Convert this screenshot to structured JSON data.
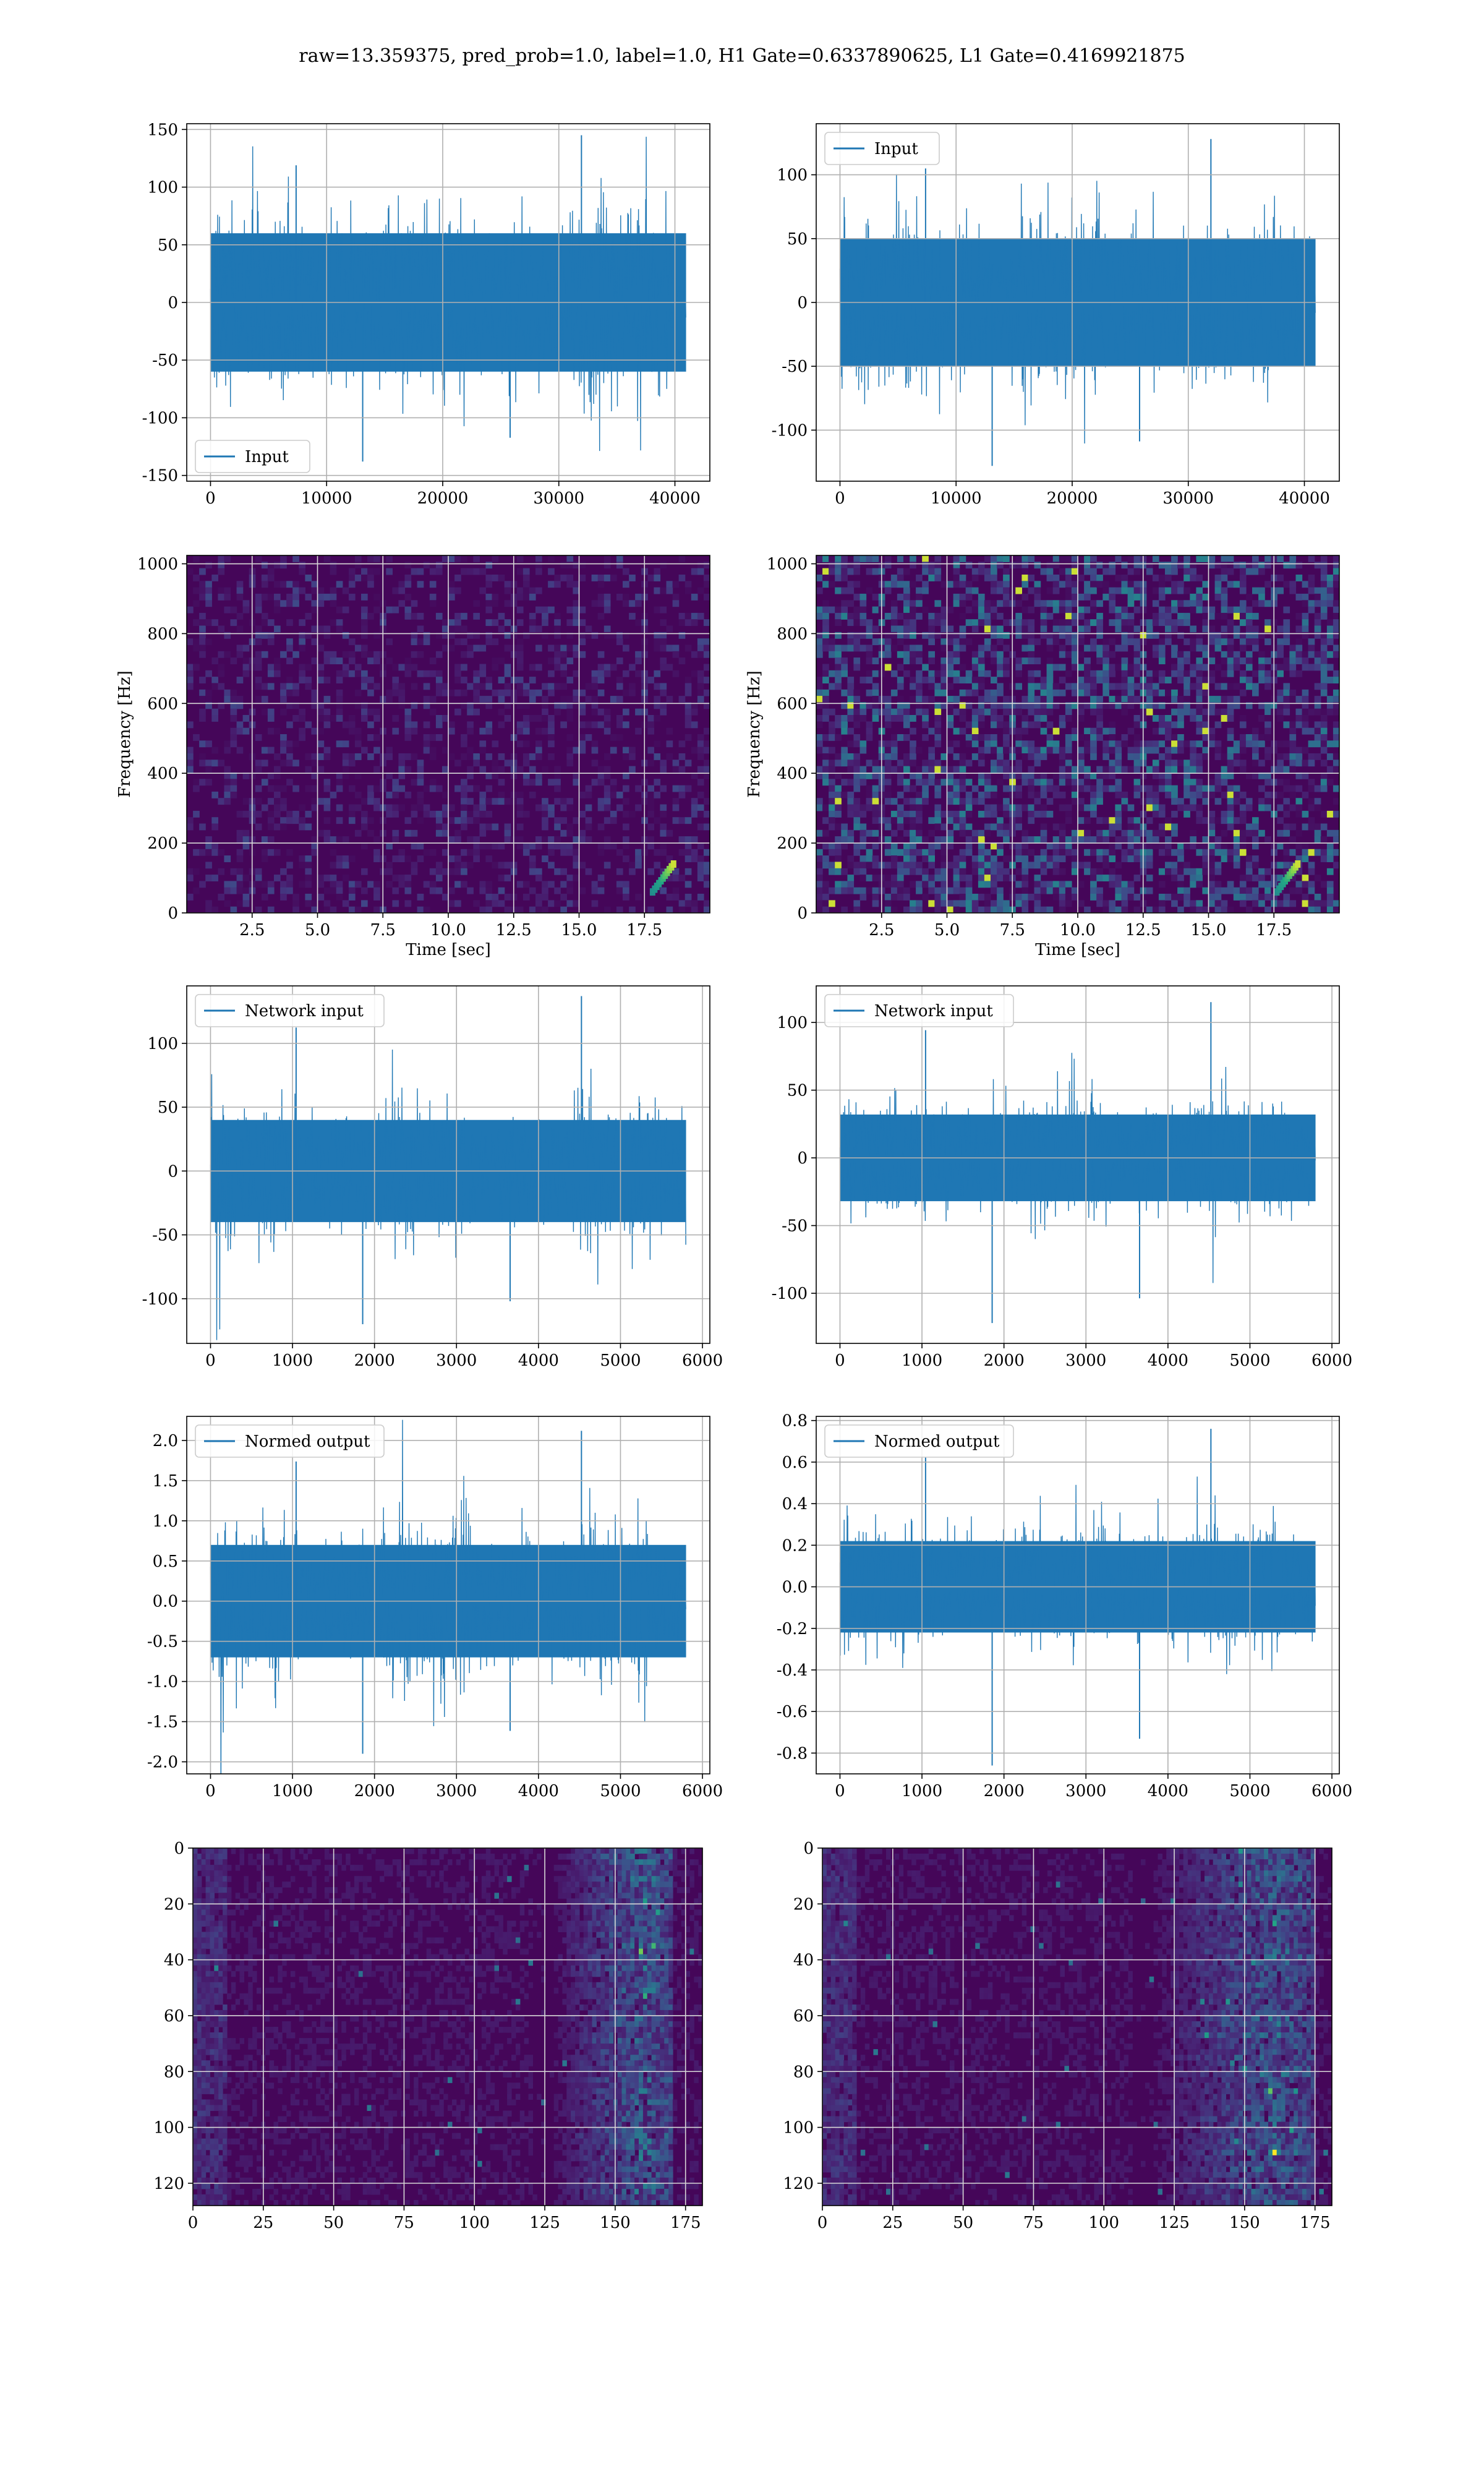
{
  "figure": {
    "suptitle": "raw=13.359375, pred_prob=1.0, label=1.0, H1 Gate=0.6337890625, L1 Gate=0.4169921875"
  },
  "chart_data": [
    {
      "id": "input-h1",
      "type": "line",
      "legend": {
        "entries": [
          "Input"
        ],
        "position": "lower left"
      },
      "series": [
        {
          "name": "Input",
          "color": "#1f77b4",
          "n_points": 40960,
          "envelope": 60,
          "peaks": [
            145,
            -138
          ]
        }
      ],
      "xlim": [
        -2048,
        43008
      ],
      "ylim": [
        -155,
        155
      ],
      "xticks": [
        0,
        10000,
        20000,
        30000,
        40000
      ],
      "yticks": [
        -150,
        -100,
        -50,
        0,
        50,
        100,
        150
      ],
      "xlabel": "",
      "ylabel": "",
      "grid": true
    },
    {
      "id": "input-l1",
      "type": "line",
      "legend": {
        "entries": [
          "Input"
        ],
        "position": "upper left"
      },
      "series": [
        {
          "name": "Input",
          "color": "#1f77b4",
          "n_points": 40960,
          "envelope": 50,
          "peaks": [
            128,
            -128
          ]
        }
      ],
      "xlim": [
        -2048,
        43008
      ],
      "ylim": [
        -140,
        140
      ],
      "xticks": [
        0,
        10000,
        20000,
        30000,
        40000
      ],
      "yticks": [
        -100,
        -50,
        0,
        50,
        100
      ],
      "xlabel": "",
      "ylabel": "",
      "grid": true
    },
    {
      "id": "spectrogram-h1",
      "type": "heatmap",
      "colormap": "viridis",
      "x_range": [
        0,
        20
      ],
      "y_range": [
        0,
        1024
      ],
      "xticks": [
        2.5,
        5.0,
        7.5,
        10.0,
        12.5,
        15.0,
        17.5
      ],
      "yticks": [
        0,
        200,
        400,
        600,
        800,
        1000
      ],
      "xlabel": "Time [sec]",
      "ylabel": "Frequency [Hz]",
      "grid": true,
      "intensity": "low",
      "chirp": {
        "t_start": 17.8,
        "t_end": 18.6,
        "f_start": 60,
        "f_end": 140
      }
    },
    {
      "id": "spectrogram-l1",
      "type": "heatmap",
      "colormap": "viridis",
      "x_range": [
        0,
        20
      ],
      "y_range": [
        0,
        1024
      ],
      "xticks": [
        2.5,
        5.0,
        7.5,
        10.0,
        12.5,
        15.0,
        17.5
      ],
      "yticks": [
        0,
        200,
        400,
        600,
        800,
        1000
      ],
      "xlabel": "Time [sec]",
      "ylabel": "Frequency [Hz]",
      "grid": true,
      "intensity": "high",
      "chirp": {
        "t_start": 17.6,
        "t_end": 18.4,
        "f_start": 60,
        "f_end": 140
      }
    },
    {
      "id": "network-input-h1",
      "type": "line",
      "legend": {
        "entries": [
          "Network input"
        ],
        "position": "upper left"
      },
      "series": [
        {
          "name": "Network input",
          "color": "#1f77b4",
          "n_points": 5800,
          "envelope": 40,
          "peaks": [
            137,
            -120
          ]
        }
      ],
      "xlim": [
        -290,
        6090
      ],
      "ylim": [
        -135,
        145
      ],
      "xticks": [
        0,
        1000,
        2000,
        3000,
        4000,
        5000,
        6000
      ],
      "yticks": [
        -100,
        -50,
        0,
        50,
        100
      ],
      "xlabel": "",
      "ylabel": "",
      "grid": true
    },
    {
      "id": "network-input-l1",
      "type": "line",
      "legend": {
        "entries": [
          "Network input"
        ],
        "position": "upper left"
      },
      "series": [
        {
          "name": "Network input",
          "color": "#1f77b4",
          "n_points": 5800,
          "envelope": 32,
          "peaks": [
            115,
            -122
          ]
        }
      ],
      "xlim": [
        -290,
        6090
      ],
      "ylim": [
        -137,
        127
      ],
      "xticks": [
        0,
        1000,
        2000,
        3000,
        4000,
        5000,
        6000
      ],
      "yticks": [
        -100,
        -50,
        0,
        50,
        100
      ],
      "xlabel": "",
      "ylabel": "",
      "grid": true
    },
    {
      "id": "normed-output-h1",
      "type": "line",
      "legend": {
        "entries": [
          "Normed output"
        ],
        "position": "upper left"
      },
      "series": [
        {
          "name": "Normed output",
          "color": "#1f77b4",
          "n_points": 5800,
          "envelope": 0.7,
          "peaks": [
            2.12,
            -1.9
          ]
        }
      ],
      "xlim": [
        -290,
        6090
      ],
      "ylim": [
        -2.15,
        2.3
      ],
      "xticks": [
        0,
        1000,
        2000,
        3000,
        4000,
        5000,
        6000
      ],
      "yticks": [
        -2.0,
        -1.5,
        -1.0,
        -0.5,
        0.0,
        0.5,
        1.0,
        1.5,
        2.0
      ],
      "xlabel": "",
      "ylabel": "",
      "grid": true
    },
    {
      "id": "normed-output-l1",
      "type": "line",
      "legend": {
        "entries": [
          "Normed output"
        ],
        "position": "upper left"
      },
      "series": [
        {
          "name": "Normed output",
          "color": "#1f77b4",
          "n_points": 5800,
          "envelope": 0.22,
          "peaks": [
            0.76,
            -0.86
          ]
        }
      ],
      "xlim": [
        -290,
        6090
      ],
      "ylim": [
        -0.9,
        0.82
      ],
      "xticks": [
        0,
        1000,
        2000,
        3000,
        4000,
        5000,
        6000
      ],
      "yticks": [
        -0.8,
        -0.6,
        -0.4,
        -0.2,
        0.0,
        0.2,
        0.4,
        0.6,
        0.8
      ],
      "xlabel": "",
      "ylabel": "",
      "grid": true
    },
    {
      "id": "feature-map-h1",
      "type": "heatmap",
      "colormap": "viridis",
      "x_range": [
        0,
        181
      ],
      "y_range": [
        0,
        128
      ],
      "y_inverted": true,
      "xticks": [
        0,
        25,
        50,
        75,
        100,
        125,
        150,
        175
      ],
      "yticks": [
        0,
        20,
        40,
        60,
        80,
        100,
        120
      ],
      "xlabel": "",
      "ylabel": "",
      "grid": true,
      "bright_band": {
        "x_start": 120,
        "x_end": 170,
        "peak_x": 160
      }
    },
    {
      "id": "feature-map-l1",
      "type": "heatmap",
      "colormap": "viridis",
      "x_range": [
        0,
        181
      ],
      "y_range": [
        0,
        128
      ],
      "y_inverted": true,
      "xticks": [
        0,
        25,
        50,
        75,
        100,
        125,
        150,
        175
      ],
      "yticks": [
        0,
        20,
        40,
        60,
        80,
        100,
        120
      ],
      "xlabel": "",
      "ylabel": "",
      "grid": true,
      "bright_band": {
        "x_start": 110,
        "x_end": 175,
        "peak_x": 160
      }
    }
  ]
}
